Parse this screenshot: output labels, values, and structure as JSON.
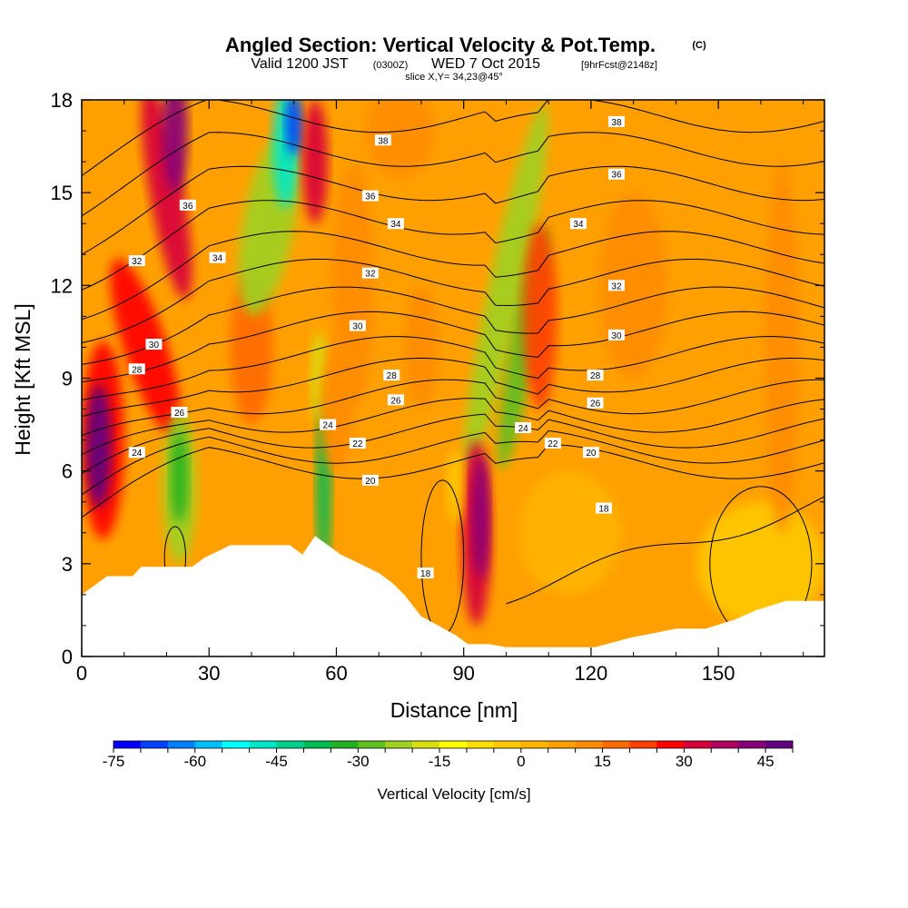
{
  "title": {
    "main": "Angled Section: Vertical Velocity & Pot.Temp.",
    "main_suffix": "(C)",
    "valid_prefix": "Valid 1200 JST",
    "valid_z": "(0300Z)",
    "valid_date": "WED 7 Oct 2015",
    "valid_fcst": "[9hrFcst@2148z]",
    "slice": "slice X,Y= 34,23@45°"
  },
  "colors": {
    "terrain": "#ffffff",
    "background": "#ffffff",
    "contour": "#000000"
  },
  "chart_data": {
    "type": "heatmap",
    "xlabel": "Distance [nm]",
    "ylabel": "Height [Kft MSL]",
    "xlim": [
      0,
      175
    ],
    "ylim": [
      0,
      18
    ],
    "xticks": [
      0,
      30,
      60,
      90,
      120,
      150
    ],
    "yticks": [
      0,
      3,
      6,
      9,
      12,
      15,
      18
    ],
    "colorbar": {
      "title": "Vertical Velocity [cm/s]",
      "min": -75,
      "max": 50,
      "step": 5,
      "ticks": [
        -75,
        -60,
        -45,
        -30,
        -15,
        0,
        15,
        30,
        45
      ],
      "colors": [
        "#0000ff",
        "#0040ff",
        "#0080ff",
        "#00c0ff",
        "#00ffff",
        "#00e8c8",
        "#00d08c",
        "#00bb50",
        "#20b020",
        "#60c020",
        "#a0d020",
        "#d8e010",
        "#ffff00",
        "#ffe000",
        "#ffc800",
        "#ffb400",
        "#ffa000",
        "#ff8c00",
        "#ff6a00",
        "#ff4000",
        "#ff0000",
        "#d8003a",
        "#b00060",
        "#880078",
        "#600080"
      ]
    },
    "terrain": [
      {
        "x": 0,
        "h": 2.0
      },
      {
        "x": 3,
        "h": 2.3
      },
      {
        "x": 6,
        "h": 2.6
      },
      {
        "x": 9,
        "h": 2.6
      },
      {
        "x": 12,
        "h": 2.6
      },
      {
        "x": 14,
        "h": 2.9
      },
      {
        "x": 20,
        "h": 2.9
      },
      {
        "x": 26,
        "h": 2.9
      },
      {
        "x": 29,
        "h": 3.2
      },
      {
        "x": 32,
        "h": 3.4
      },
      {
        "x": 35,
        "h": 3.6
      },
      {
        "x": 49,
        "h": 3.6
      },
      {
        "x": 52,
        "h": 3.3
      },
      {
        "x": 55,
        "h": 3.9
      },
      {
        "x": 58,
        "h": 3.6
      },
      {
        "x": 61,
        "h": 3.3
      },
      {
        "x": 64,
        "h": 3.1
      },
      {
        "x": 67,
        "h": 2.9
      },
      {
        "x": 70,
        "h": 2.7
      },
      {
        "x": 73,
        "h": 2.4
      },
      {
        "x": 76,
        "h": 2.0
      },
      {
        "x": 80,
        "h": 1.3
      },
      {
        "x": 84,
        "h": 1.0
      },
      {
        "x": 88,
        "h": 0.7
      },
      {
        "x": 91,
        "h": 0.4
      },
      {
        "x": 96,
        "h": 0.4
      },
      {
        "x": 100,
        "h": 0.3
      },
      {
        "x": 105,
        "h": 0.3
      },
      {
        "x": 110,
        "h": 0.3
      },
      {
        "x": 115,
        "h": 0.3
      },
      {
        "x": 121,
        "h": 0.3
      },
      {
        "x": 129,
        "h": 0.6
      },
      {
        "x": 140,
        "h": 0.9
      },
      {
        "x": 147,
        "h": 0.9
      },
      {
        "x": 154,
        "h": 1.2
      },
      {
        "x": 159,
        "h": 1.5
      },
      {
        "x": 166,
        "h": 1.8
      },
      {
        "x": 175,
        "h": 1.8
      }
    ],
    "contour_labels": [
      {
        "text": "38",
        "x": 126,
        "y": 17.3
      },
      {
        "text": "38",
        "x": 71,
        "y": 16.7
      },
      {
        "text": "36",
        "x": 126,
        "y": 15.6
      },
      {
        "text": "36",
        "x": 25,
        "y": 14.6
      },
      {
        "text": "36",
        "x": 68,
        "y": 14.9
      },
      {
        "text": "34",
        "x": 74,
        "y": 14.0
      },
      {
        "text": "34",
        "x": 117,
        "y": 14.0
      },
      {
        "text": "34",
        "x": 32,
        "y": 12.9
      },
      {
        "text": "32",
        "x": 13,
        "y": 12.8
      },
      {
        "text": "32",
        "x": 68,
        "y": 12.4
      },
      {
        "text": "32",
        "x": 126,
        "y": 12.0
      },
      {
        "text": "30",
        "x": 65,
        "y": 10.7
      },
      {
        "text": "30",
        "x": 126,
        "y": 10.4
      },
      {
        "text": "30",
        "x": 17,
        "y": 10.1
      },
      {
        "text": "28",
        "x": 13,
        "y": 9.3
      },
      {
        "text": "28",
        "x": 73,
        "y": 9.1
      },
      {
        "text": "28",
        "x": 121,
        "y": 9.1
      },
      {
        "text": "26",
        "x": 74,
        "y": 8.3
      },
      {
        "text": "26",
        "x": 121,
        "y": 8.2
      },
      {
        "text": "26",
        "x": 23,
        "y": 7.9
      },
      {
        "text": "24",
        "x": 58,
        "y": 7.5
      },
      {
        "text": "24",
        "x": 104,
        "y": 7.4
      },
      {
        "text": "24",
        "x": 13,
        "y": 6.6
      },
      {
        "text": "22",
        "x": 65,
        "y": 6.9
      },
      {
        "text": "22",
        "x": 111,
        "y": 6.9
      },
      {
        "text": "20",
        "x": 120,
        "y": 6.6
      },
      {
        "text": "20",
        "x": 68,
        "y": 5.7
      },
      {
        "text": "18",
        "x": 123,
        "y": 4.8
      },
      {
        "text": "18",
        "x": 81,
        "y": 2.7
      }
    ]
  }
}
